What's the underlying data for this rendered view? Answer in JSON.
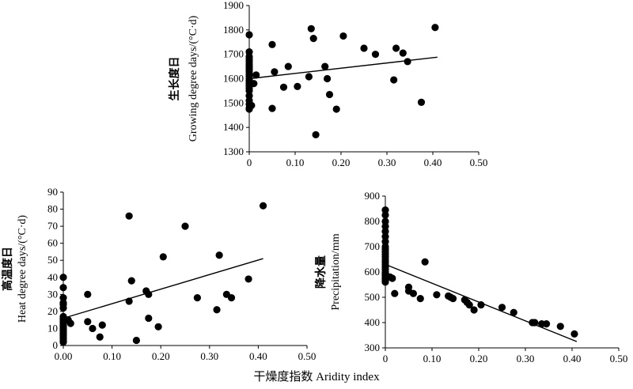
{
  "figure": {
    "xlabel": "干燥度指数 Aridity index"
  },
  "chart_data": [
    {
      "type": "scatter",
      "ylabel_zh": "生长度日",
      "ylabel_en": "Growing degree days/(°C·d)",
      "xlim": [
        0,
        0.5
      ],
      "ylim": [
        1300,
        1900
      ],
      "xticks": [
        "0",
        "0.10",
        "0.20",
        "0.30",
        "0.40",
        "0.50"
      ],
      "yticks": [
        "1300",
        "1400",
        "1500",
        "1600",
        "1700",
        "1800",
        "1900"
      ],
      "points": [
        [
          0,
          1780
        ],
        [
          0,
          1710
        ],
        [
          0,
          1690
        ],
        [
          0,
          1680
        ],
        [
          0,
          1670
        ],
        [
          0,
          1660
        ],
        [
          0,
          1650
        ],
        [
          0,
          1640
        ],
        [
          0,
          1630
        ],
        [
          0,
          1620
        ],
        [
          0,
          1610
        ],
        [
          0,
          1600
        ],
        [
          0,
          1590
        ],
        [
          0,
          1580
        ],
        [
          0,
          1570
        ],
        [
          0,
          1560
        ],
        [
          0,
          1550
        ],
        [
          0,
          1530
        ],
        [
          0,
          1510
        ],
        [
          0,
          1495
        ],
        [
          0,
          1480
        ],
        [
          0,
          1475
        ],
        [
          0.005,
          1490
        ],
        [
          0.01,
          1580
        ],
        [
          0.015,
          1615
        ],
        [
          0.05,
          1740
        ],
        [
          0.05,
          1478
        ],
        [
          0.055,
          1628
        ],
        [
          0.075,
          1565
        ],
        [
          0.085,
          1650
        ],
        [
          0.105,
          1568
        ],
        [
          0.13,
          1608
        ],
        [
          0.135,
          1805
        ],
        [
          0.14,
          1765
        ],
        [
          0.145,
          1370
        ],
        [
          0.165,
          1650
        ],
        [
          0.17,
          1600
        ],
        [
          0.175,
          1535
        ],
        [
          0.19,
          1475
        ],
        [
          0.205,
          1775
        ],
        [
          0.25,
          1725
        ],
        [
          0.275,
          1700
        ],
        [
          0.315,
          1595
        ],
        [
          0.32,
          1725
        ],
        [
          0.335,
          1705
        ],
        [
          0.345,
          1670
        ],
        [
          0.375,
          1503
        ],
        [
          0.405,
          1810
        ]
      ],
      "trendline": [
        [
          0,
          1600
        ],
        [
          0.41,
          1688
        ]
      ]
    },
    {
      "type": "scatter",
      "ylabel_zh": "高温度日",
      "ylabel_en": "Heat degree days/(°C·d)",
      "xlim": [
        0,
        0.5
      ],
      "ylim": [
        0,
        90
      ],
      "xticks": [
        "0.00",
        "0.10",
        "0.20",
        "0.30",
        "0.40",
        "0.50"
      ],
      "yticks": [
        "0",
        "10",
        "20",
        "30",
        "40",
        "50",
        "60",
        "70",
        "80",
        "90"
      ],
      "points": [
        [
          0,
          40
        ],
        [
          0,
          34
        ],
        [
          0,
          28
        ],
        [
          0,
          25
        ],
        [
          0,
          24
        ],
        [
          0,
          22
        ],
        [
          0,
          17
        ],
        [
          0,
          16
        ],
        [
          0,
          15
        ],
        [
          0,
          14
        ],
        [
          0,
          13
        ],
        [
          0,
          12
        ],
        [
          0,
          11
        ],
        [
          0,
          10
        ],
        [
          0,
          9
        ],
        [
          0,
          8
        ],
        [
          0,
          7
        ],
        [
          0,
          6
        ],
        [
          0,
          5
        ],
        [
          0,
          4
        ],
        [
          0,
          3
        ],
        [
          0,
          2
        ],
        [
          0.01,
          15
        ],
        [
          0.015,
          13
        ],
        [
          0.05,
          30
        ],
        [
          0.05,
          14
        ],
        [
          0.06,
          10
        ],
        [
          0.075,
          5
        ],
        [
          0.08,
          12
        ],
        [
          0.135,
          76
        ],
        [
          0.14,
          38
        ],
        [
          0.135,
          26
        ],
        [
          0.15,
          3
        ],
        [
          0.17,
          32
        ],
        [
          0.175,
          30
        ],
        [
          0.175,
          16
        ],
        [
          0.195,
          11
        ],
        [
          0.205,
          52
        ],
        [
          0.25,
          70
        ],
        [
          0.275,
          28
        ],
        [
          0.315,
          21
        ],
        [
          0.32,
          53
        ],
        [
          0.335,
          30
        ],
        [
          0.345,
          28
        ],
        [
          0.38,
          39
        ],
        [
          0.41,
          82
        ]
      ],
      "trendline": [
        [
          0,
          16
        ],
        [
          0.41,
          51
        ]
      ]
    },
    {
      "type": "scatter",
      "ylabel_zh": "降水量",
      "ylabel_en": "Precipitation/mm",
      "xlim": [
        0,
        0.5
      ],
      "ylim": [
        300,
        900
      ],
      "xticks": [
        "0",
        "0.10",
        "0.20",
        "0.30",
        "0.40",
        "0.50"
      ],
      "yticks": [
        "300",
        "400",
        "500",
        "600",
        "700",
        "800",
        "900"
      ],
      "points": [
        [
          0,
          845
        ],
        [
          0,
          825
        ],
        [
          0,
          800
        ],
        [
          0,
          780
        ],
        [
          0,
          760
        ],
        [
          0,
          740
        ],
        [
          0,
          720
        ],
        [
          0,
          700
        ],
        [
          0,
          690
        ],
        [
          0,
          680
        ],
        [
          0,
          670
        ],
        [
          0,
          660
        ],
        [
          0,
          650
        ],
        [
          0,
          640
        ],
        [
          0,
          630
        ],
        [
          0,
          620
        ],
        [
          0,
          610
        ],
        [
          0,
          600
        ],
        [
          0,
          595
        ],
        [
          0,
          590
        ],
        [
          0,
          585
        ],
        [
          0,
          580
        ],
        [
          0,
          575
        ],
        [
          0,
          570
        ],
        [
          0,
          565
        ],
        [
          0,
          560
        ],
        [
          0.01,
          580
        ],
        [
          0.015,
          575
        ],
        [
          0.02,
          515
        ],
        [
          0.05,
          540
        ],
        [
          0.05,
          525
        ],
        [
          0.06,
          515
        ],
        [
          0.085,
          640
        ],
        [
          0.075,
          495
        ],
        [
          0.11,
          510
        ],
        [
          0.135,
          505
        ],
        [
          0.14,
          500
        ],
        [
          0.145,
          495
        ],
        [
          0.17,
          490
        ],
        [
          0.175,
          480
        ],
        [
          0.18,
          470
        ],
        [
          0.19,
          450
        ],
        [
          0.205,
          470
        ],
        [
          0.25,
          460
        ],
        [
          0.275,
          440
        ],
        [
          0.315,
          400
        ],
        [
          0.32,
          400
        ],
        [
          0.335,
          395
        ],
        [
          0.345,
          395
        ],
        [
          0.375,
          385
        ],
        [
          0.405,
          355
        ]
      ],
      "trendline": [
        [
          0,
          630
        ],
        [
          0.41,
          325
        ]
      ]
    }
  ]
}
